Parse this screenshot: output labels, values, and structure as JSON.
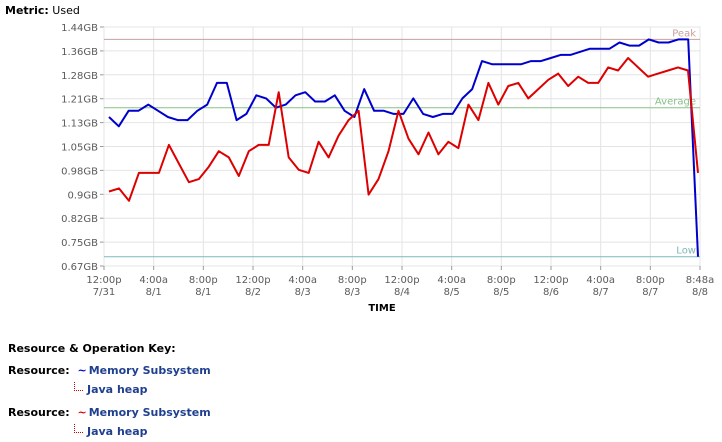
{
  "metric": {
    "label": "Metric:",
    "value": "Used"
  },
  "chart_data": {
    "type": "line",
    "xlabel": "TIME",
    "ylabel": "",
    "ylim": [
      0.67,
      1.44
    ],
    "y_ticks": [
      "1.44GB",
      "1.36GB",
      "1.28GB",
      "1.21GB",
      "1.13GB",
      "1.05GB",
      "0.98GB",
      "0.9GB",
      "0.82GB",
      "0.75GB",
      "0.67GB"
    ],
    "x_ticks": [
      {
        "time": "12:00p",
        "date": "7/31"
      },
      {
        "time": "4:00a",
        "date": "8/1"
      },
      {
        "time": "8:00p",
        "date": "8/1"
      },
      {
        "time": "12:00p",
        "date": "8/2"
      },
      {
        "time": "4:00a",
        "date": "8/3"
      },
      {
        "time": "8:00p",
        "date": "8/3"
      },
      {
        "time": "12:00p",
        "date": "8/4"
      },
      {
        "time": "4:00a",
        "date": "8/5"
      },
      {
        "time": "8:00p",
        "date": "8/5"
      },
      {
        "time": "12:00p",
        "date": "8/6"
      },
      {
        "time": "4:00a",
        "date": "8/7"
      },
      {
        "time": "8:00p",
        "date": "8/7"
      },
      {
        "time": "8:48a",
        "date": "8/8"
      }
    ],
    "reference_lines": [
      {
        "name": "Peak",
        "value": 1.4,
        "color": "#c8a0a0"
      },
      {
        "name": "Average",
        "value": 1.18,
        "color": "#88c088"
      },
      {
        "name": "Low",
        "value": 0.7,
        "color": "#7fb8b8"
      }
    ],
    "series": [
      {
        "color": "#0000cc",
        "values": [
          1.15,
          1.12,
          1.17,
          1.17,
          1.19,
          1.17,
          1.15,
          1.14,
          1.14,
          1.17,
          1.19,
          1.26,
          1.26,
          1.14,
          1.16,
          1.22,
          1.21,
          1.18,
          1.19,
          1.22,
          1.23,
          1.2,
          1.2,
          1.22,
          1.17,
          1.15,
          1.24,
          1.17,
          1.17,
          1.16,
          1.16,
          1.21,
          1.16,
          1.15,
          1.16,
          1.16,
          1.21,
          1.24,
          1.33,
          1.32,
          1.32,
          1.32,
          1.32,
          1.33,
          1.33,
          1.34,
          1.35,
          1.35,
          1.36,
          1.37,
          1.37,
          1.37,
          1.39,
          1.38,
          1.38,
          1.4,
          1.39,
          1.39,
          1.4,
          1.4,
          0.7
        ]
      },
      {
        "color": "#dd0000",
        "values": [
          0.91,
          0.92,
          0.88,
          0.97,
          0.97,
          0.97,
          1.06,
          1.0,
          0.94,
          0.95,
          0.99,
          1.04,
          1.02,
          0.96,
          1.04,
          1.06,
          1.06,
          1.23,
          1.02,
          0.98,
          0.97,
          1.07,
          1.02,
          1.09,
          1.14,
          1.17,
          0.9,
          0.95,
          1.04,
          1.17,
          1.08,
          1.03,
          1.1,
          1.03,
          1.07,
          1.05,
          1.19,
          1.14,
          1.26,
          1.19,
          1.25,
          1.26,
          1.21,
          1.24,
          1.27,
          1.29,
          1.25,
          1.28,
          1.26,
          1.26,
          1.31,
          1.3,
          1.34,
          1.31,
          1.28,
          1.29,
          1.3,
          1.31,
          1.3,
          0.97
        ]
      }
    ]
  },
  "key": {
    "title": "Resource & Operation Key:",
    "rows": [
      {
        "resource_label": "Resource:",
        "resource": "Memory Subsystem",
        "operation": "Java heap",
        "color": "#0000cc"
      },
      {
        "resource_label": "Resource:",
        "resource": "Memory Subsystem",
        "operation": "Java heap",
        "color": "#dd0000"
      }
    ]
  }
}
